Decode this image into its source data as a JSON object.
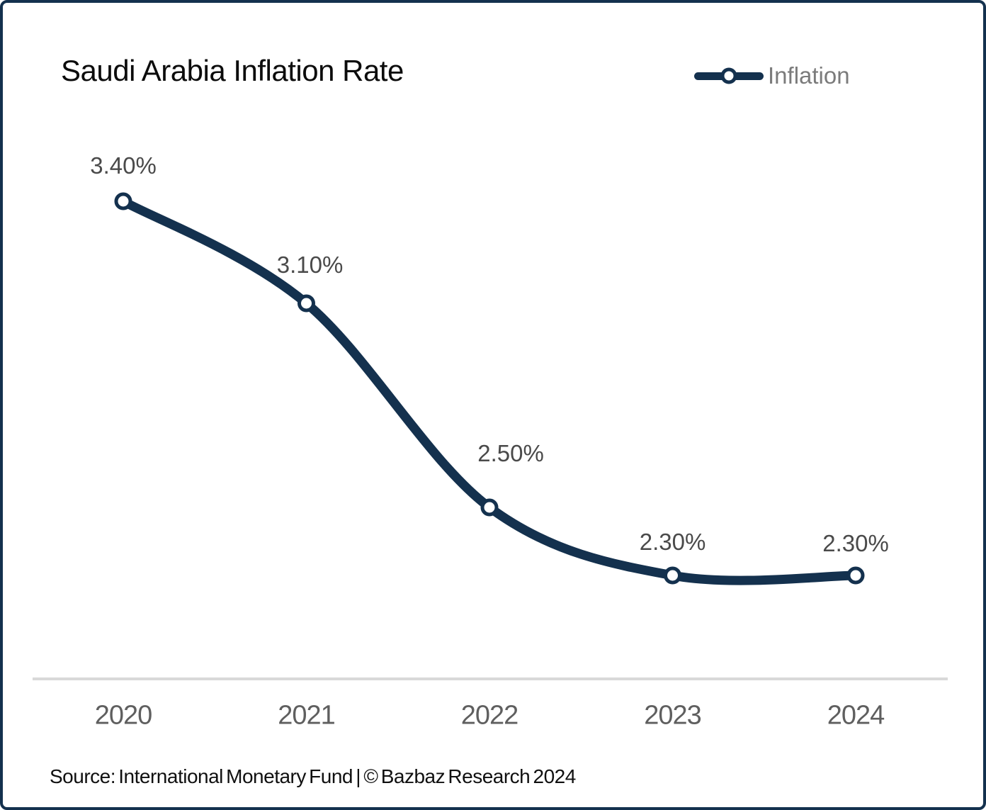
{
  "header": {
    "title": "Saudi Arabia Inflation Rate",
    "legend": {
      "label": "Inflation"
    }
  },
  "chart_data": {
    "type": "line",
    "title": "Saudi Arabia Inflation Rate",
    "categories": [
      "2020",
      "2021",
      "2022",
      "2023",
      "2024"
    ],
    "series": [
      {
        "name": "Inflation",
        "values": [
          3.4,
          3.1,
          2.5,
          2.3,
          2.3
        ]
      }
    ],
    "point_labels": [
      "3.40%",
      "3.10%",
      "2.50%",
      "2.30%",
      "2.30%"
    ],
    "unit": "%",
    "legend_position": "top-right",
    "grid": "off",
    "x_axis_line": "on",
    "y_axis": "hidden",
    "label_dx": [
      0,
      5,
      30,
      0,
      0
    ],
    "label_dy": [
      -50,
      -54,
      -76,
      -47,
      -45
    ],
    "smooth": true
  },
  "footer": {
    "source": "Source: International Monetary Fund | © Bazbaz Research 2024"
  },
  "colors": {
    "line": "#14314e",
    "marker_fill": "#ffffff",
    "marker_stroke": "#14314e",
    "frame_border": "#14314e",
    "axis_line": "#d9d9d9",
    "title_text": "#0c0c0c",
    "data_label_text": "#4a4a4a",
    "axis_label_text": "#5f5f5f",
    "legend_text": "#7b7b7b",
    "source_text": "#101010",
    "background": "#ffffff"
  }
}
